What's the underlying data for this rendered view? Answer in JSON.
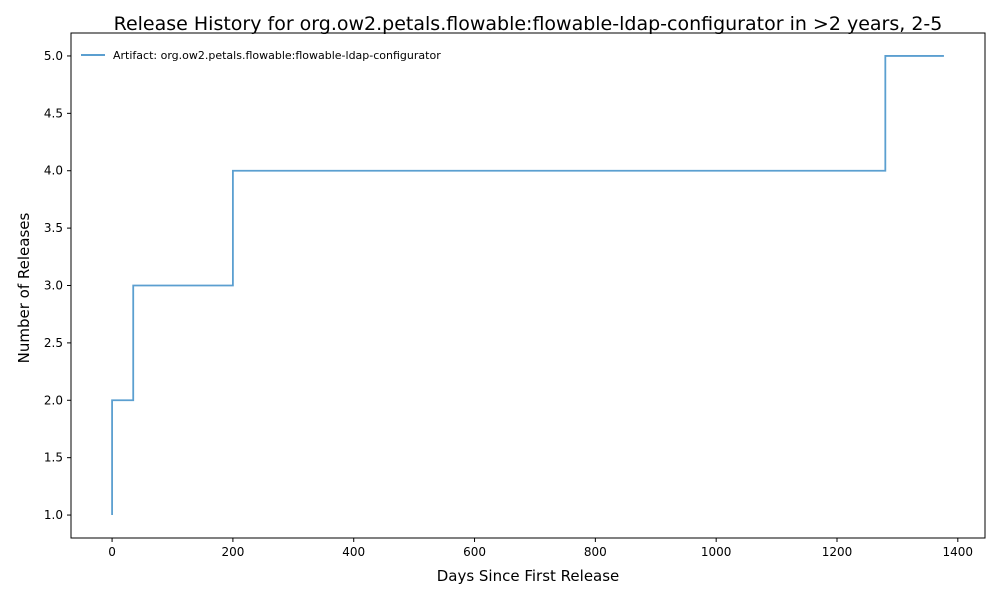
{
  "chart_data": {
    "type": "line",
    "step": true,
    "title": "Release History for org.ow2.petals.flowable:flowable-ldap-configurator in >2 years, 2-5",
    "xlabel": "Days Since First Release",
    "ylabel": "Number of Releases",
    "xlim": [
      -68,
      1445
    ],
    "ylim": [
      0.8,
      5.2
    ],
    "xticks": [
      0,
      200,
      400,
      600,
      800,
      1000,
      1200,
      1400
    ],
    "xtick_labels": [
      "0",
      "200",
      "400",
      "600",
      "800",
      "1000",
      "1200",
      "1400"
    ],
    "yticks": [
      1.0,
      1.5,
      2.0,
      2.5,
      3.0,
      3.5,
      4.0,
      4.5,
      5.0
    ],
    "ytick_labels": [
      "1.0",
      "1.5",
      "2.0",
      "2.5",
      "3.0",
      "3.5",
      "4.0",
      "4.5",
      "5.0"
    ],
    "grid": false,
    "legend_position": "top-left",
    "series": [
      {
        "name": "Artifact: org.ow2.petals.flowable:flowable-ldap-configurator",
        "color": "#5b9fd0",
        "x": [
          0,
          0,
          35,
          200,
          1280,
          1377
        ],
        "y": [
          1,
          2,
          3,
          4,
          5,
          5
        ]
      }
    ]
  }
}
